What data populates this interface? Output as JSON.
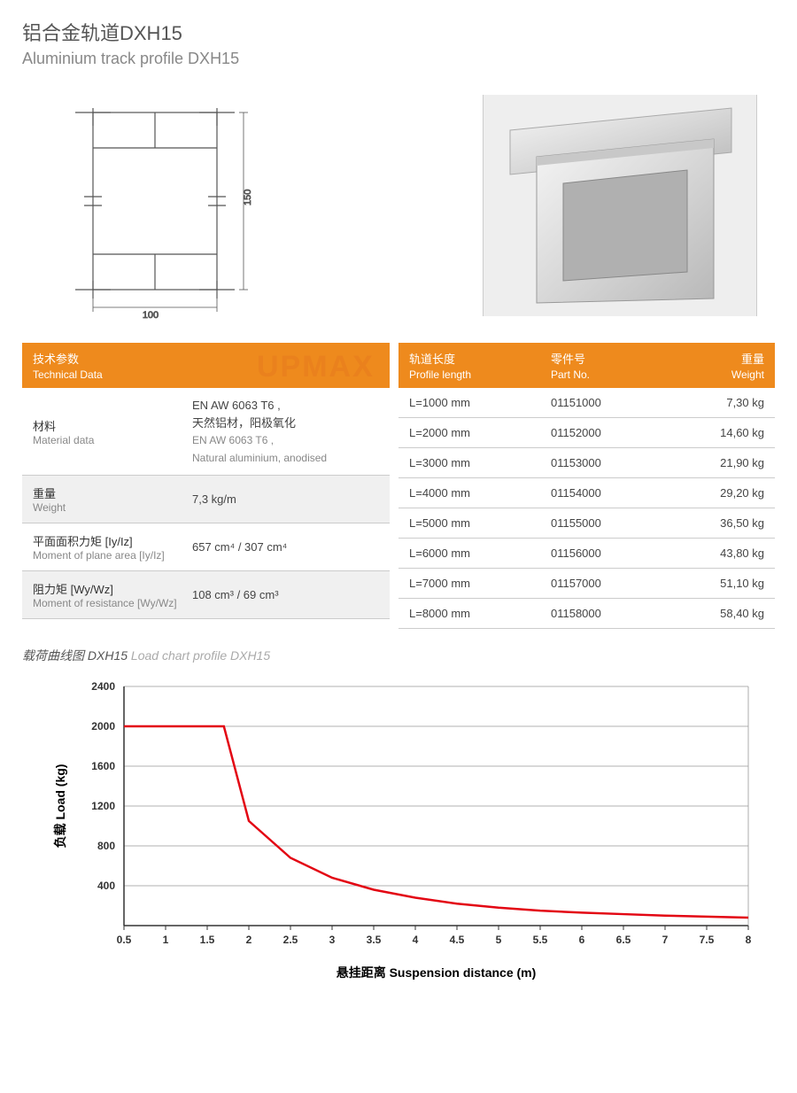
{
  "header": {
    "title_cn": "铝合金轨道DXH15",
    "title_en": "Aluminium track profile DXH15"
  },
  "diagram": {
    "width_label": "100",
    "height_label": "150",
    "stroke_color": "#555555"
  },
  "photo_placeholder": "aluminium profile photo",
  "watermark": "UPMAX",
  "tech_table": {
    "header_cn": "技术参数",
    "header_en": "Technical Data",
    "header_bg": "#ee8a1d",
    "rows": [
      {
        "label_cn": "材料",
        "label_en": "Material data",
        "value_line1": "EN AW 6063 T6 ,",
        "value_line2": "天然铝材，阳极氧化",
        "value_line3": "EN AW 6063 T6 ,",
        "value_line4": "Natural aluminium, anodised",
        "alt": false
      },
      {
        "label_cn": "重量",
        "label_en": "Weight",
        "value_line1": "7,3 kg/m",
        "alt": true
      },
      {
        "label_cn": "平面面积力矩 [Iy/Iz]",
        "label_en": "Moment of plane area [Iy/Iz]",
        "value_html": "657 cm⁴ / 307 cm⁴",
        "alt": false
      },
      {
        "label_cn": "阻力矩 [Wy/Wz]",
        "label_en": "Moment of resistance [Wy/Wz]",
        "value_html": "108 cm³ / 69 cm³",
        "alt": true
      }
    ]
  },
  "parts_table": {
    "headers": [
      {
        "cn": "轨道长度",
        "en": "Profile length"
      },
      {
        "cn": "零件号",
        "en": "Part No."
      },
      {
        "cn": "重量",
        "en": "Weight"
      }
    ],
    "rows": [
      {
        "length": "L=1000 mm",
        "part": "01151000",
        "weight": "7,30 kg"
      },
      {
        "length": "L=2000 mm",
        "part": "01152000",
        "weight": "14,60 kg"
      },
      {
        "length": "L=3000 mm",
        "part": "01153000",
        "weight": "21,90 kg"
      },
      {
        "length": "L=4000 mm",
        "part": "01154000",
        "weight": "29,20 kg"
      },
      {
        "length": "L=5000 mm",
        "part": "01155000",
        "weight": "36,50 kg"
      },
      {
        "length": "L=6000 mm",
        "part": "01156000",
        "weight": "43,80 kg"
      },
      {
        "length": "L=7000 mm",
        "part": "01157000",
        "weight": "51,10 kg"
      },
      {
        "length": "L=8000 mm",
        "part": "01158000",
        "weight": "58,40 kg"
      }
    ]
  },
  "chart_title": {
    "cn": "载荷曲线图 DXH15",
    "en": "Load chart profile DXH15"
  },
  "load_chart": {
    "type": "line",
    "xlabel_cn": "悬挂距离",
    "xlabel_en": "Suspension distance (m)",
    "ylabel_cn": "负载",
    "ylabel_en": "Load (kg)",
    "xlim": [
      0.5,
      8
    ],
    "ylim": [
      0,
      2400
    ],
    "xticks": [
      0.5,
      1,
      1.5,
      2,
      2.5,
      3,
      3.5,
      4,
      4.5,
      5,
      5.5,
      6,
      6.5,
      7,
      7.5,
      8
    ],
    "yticks": [
      400,
      800,
      1200,
      1600,
      2000,
      2400
    ],
    "grid_color": "#999999",
    "line_color": "#e30613",
    "line_width": 2.5,
    "background_color": "#ffffff",
    "axis_color": "#333333",
    "tick_fontsize": 12,
    "label_fontsize": 14,
    "label_fontweight": "bold",
    "data_points": [
      {
        "x": 0.5,
        "y": 2000
      },
      {
        "x": 1.0,
        "y": 2000
      },
      {
        "x": 1.5,
        "y": 2000
      },
      {
        "x": 1.7,
        "y": 2000
      },
      {
        "x": 2.0,
        "y": 1050
      },
      {
        "x": 2.5,
        "y": 680
      },
      {
        "x": 3.0,
        "y": 480
      },
      {
        "x": 3.5,
        "y": 360
      },
      {
        "x": 4.0,
        "y": 280
      },
      {
        "x": 4.5,
        "y": 220
      },
      {
        "x": 5.0,
        "y": 180
      },
      {
        "x": 5.5,
        "y": 150
      },
      {
        "x": 6.0,
        "y": 130
      },
      {
        "x": 6.5,
        "y": 115
      },
      {
        "x": 7.0,
        "y": 100
      },
      {
        "x": 7.5,
        "y": 90
      },
      {
        "x": 8.0,
        "y": 80
      }
    ]
  }
}
